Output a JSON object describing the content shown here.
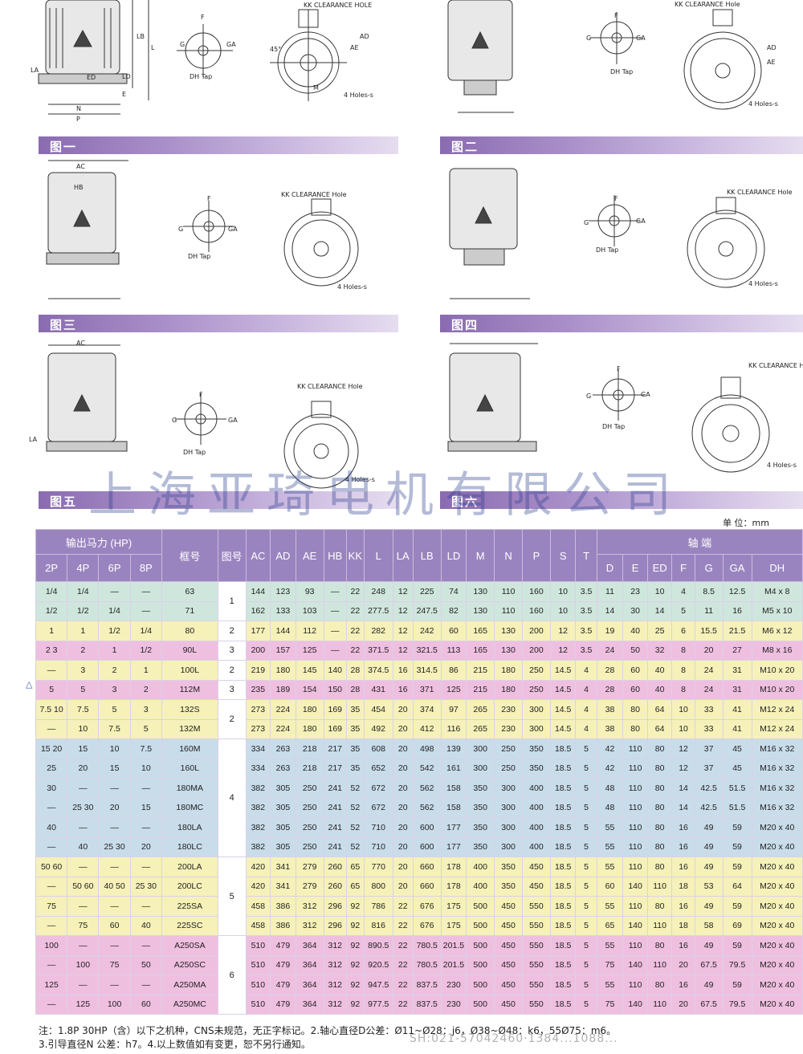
{
  "figures": [
    {
      "label": "图一",
      "texts": [
        "LB",
        "L",
        "LA",
        "ED",
        "LD",
        "E",
        "N",
        "P",
        "F",
        "G",
        "GA",
        "DH Tap",
        "KK CLEARANCE HOLE",
        "AD",
        "AE",
        "45°",
        "4 Holes-s",
        "M"
      ]
    },
    {
      "label": "图二",
      "texts": [
        "F",
        "G",
        "GA",
        "DH Tap",
        "KK CLEARANCE Hole",
        "AD",
        "AE",
        "4 Holes-s"
      ]
    },
    {
      "label": "图三",
      "texts": [
        "AC",
        "HB",
        "F",
        "G",
        "GA",
        "DH Tap",
        "KK CLEARANCE Hole",
        "4 Holes-s"
      ]
    },
    {
      "label": "图四",
      "texts": [
        "F",
        "G",
        "GA",
        "DH Tap",
        "KK CLEARANCE Hole",
        "4 Holes-s"
      ]
    },
    {
      "label": "图五",
      "texts": [
        "AC",
        "LA",
        "F",
        "G",
        "GA",
        "DH Tap",
        "KK CLEARANCE Hole",
        "4 Holes-s"
      ]
    },
    {
      "label": "图六",
      "texts": [
        "F",
        "G",
        "GA",
        "DH Tap",
        "KK CLEARANCE HOLE",
        "4 Holes-s"
      ]
    }
  ],
  "unit_label": "单 位：mm",
  "table": {
    "group_hp": "输出马力 (HP)",
    "group_shaft": "轴    端",
    "hp_cols": [
      "2P",
      "4P",
      "6P",
      "8P"
    ],
    "frame_header": "框号",
    "figure_header": "图号",
    "dim_cols": [
      "AC",
      "AD",
      "AE",
      "HB",
      "KK",
      "L",
      "LA",
      "LB",
      "LD",
      "M",
      "N",
      "P",
      "S",
      "T"
    ],
    "shaft_cols": [
      "D",
      "E",
      "ED",
      "F",
      "G",
      "GA",
      "DH"
    ],
    "rows": [
      {
        "color": "green",
        "hp": [
          "1/4",
          "1/4",
          "—",
          "—"
        ],
        "frame": "63",
        "dims": [
          "144",
          "123",
          "93",
          "—",
          "22",
          "248",
          "12",
          "225",
          "74",
          "130",
          "110",
          "160",
          "10",
          "3.5"
        ],
        "shaft": [
          "11",
          "23",
          "10",
          "4",
          "8.5",
          "12.5",
          "M4 x 8"
        ]
      },
      {
        "color": "green",
        "hp": [
          "1/2",
          "1/2",
          "1/4",
          "—"
        ],
        "frame": "71",
        "dims": [
          "162",
          "133",
          "103",
          "—",
          "22",
          "277.5",
          "12",
          "247.5",
          "82",
          "130",
          "110",
          "160",
          "10",
          "3.5"
        ],
        "shaft": [
          "14",
          "30",
          "14",
          "5",
          "11",
          "16",
          "M5 x 10"
        ]
      },
      {
        "color": "yellow",
        "hp": [
          "1",
          "1",
          "1/2",
          "1/4"
        ],
        "frame": "80",
        "dims": [
          "177",
          "144",
          "112",
          "—",
          "22",
          "282",
          "12",
          "242",
          "60",
          "165",
          "130",
          "200",
          "12",
          "3.5"
        ],
        "shaft": [
          "19",
          "40",
          "25",
          "6",
          "15.5",
          "21.5",
          "M6 x 12"
        ]
      },
      {
        "color": "pink",
        "hp": [
          "2 3",
          "2",
          "1",
          "1/2"
        ],
        "frame": "90L",
        "dims": [
          "200",
          "157",
          "125",
          "—",
          "22",
          "371.5",
          "12",
          "321.5",
          "113",
          "165",
          "130",
          "200",
          "12",
          "3.5"
        ],
        "shaft": [
          "24",
          "50",
          "32",
          "8",
          "20",
          "27",
          "M8 x 16"
        ]
      },
      {
        "color": "yellow",
        "hp": [
          "—",
          "3",
          "2",
          "1"
        ],
        "frame": "100L",
        "dims": [
          "219",
          "180",
          "145",
          "140",
          "28",
          "374.5",
          "16",
          "314.5",
          "86",
          "215",
          "180",
          "250",
          "14.5",
          "4"
        ],
        "shaft": [
          "28",
          "60",
          "40",
          "8",
          "24",
          "31",
          "M10 x 20"
        ]
      },
      {
        "color": "pink",
        "hp": [
          "5",
          "5",
          "3",
          "2"
        ],
        "frame": "112M",
        "dims": [
          "235",
          "189",
          "154",
          "150",
          "28",
          "431",
          "16",
          "371",
          "125",
          "215",
          "180",
          "250",
          "14.5",
          "4"
        ],
        "shaft": [
          "28",
          "60",
          "40",
          "8",
          "24",
          "31",
          "M10 x 20"
        ]
      },
      {
        "color": "yellow",
        "hp": [
          "7.5 10",
          "7.5",
          "5",
          "3"
        ],
        "frame": "132S",
        "dims": [
          "273",
          "224",
          "180",
          "169",
          "35",
          "454",
          "20",
          "374",
          "97",
          "265",
          "230",
          "300",
          "14.5",
          "4"
        ],
        "shaft": [
          "38",
          "80",
          "64",
          "10",
          "33",
          "41",
          "M12 x 24"
        ]
      },
      {
        "color": "yellow",
        "hp": [
          "—",
          "10",
          "7.5",
          "5"
        ],
        "frame": "132M",
        "dims": [
          "273",
          "224",
          "180",
          "169",
          "35",
          "492",
          "20",
          "412",
          "116",
          "265",
          "230",
          "300",
          "14.5",
          "4"
        ],
        "shaft": [
          "38",
          "80",
          "64",
          "10",
          "33",
          "41",
          "M12 x 24"
        ]
      },
      {
        "color": "blue",
        "hp": [
          "15 20",
          "15",
          "10",
          "7.5"
        ],
        "frame": "160M",
        "dims": [
          "334",
          "263",
          "218",
          "217",
          "35",
          "608",
          "20",
          "498",
          "139",
          "300",
          "250",
          "350",
          "18.5",
          "5"
        ],
        "shaft": [
          "42",
          "110",
          "80",
          "12",
          "37",
          "45",
          "M16 x 32"
        ]
      },
      {
        "color": "blue",
        "hp": [
          "25",
          "20",
          "15",
          "10"
        ],
        "frame": "160L",
        "dims": [
          "334",
          "263",
          "218",
          "217",
          "35",
          "652",
          "20",
          "542",
          "161",
          "300",
          "250",
          "350",
          "18.5",
          "5"
        ],
        "shaft": [
          "42",
          "110",
          "80",
          "12",
          "37",
          "45",
          "M16 x 32"
        ]
      },
      {
        "color": "blue",
        "hp": [
          "30",
          "—",
          "—",
          "—"
        ],
        "frame": "180MA",
        "dims": [
          "382",
          "305",
          "250",
          "241",
          "52",
          "672",
          "20",
          "562",
          "158",
          "350",
          "300",
          "400",
          "18.5",
          "5"
        ],
        "shaft": [
          "48",
          "110",
          "80",
          "14",
          "42.5",
          "51.5",
          "M16 x 32"
        ]
      },
      {
        "color": "blue",
        "hp": [
          "—",
          "25 30",
          "20",
          "15"
        ],
        "frame": "180MC",
        "dims": [
          "382",
          "305",
          "250",
          "241",
          "52",
          "672",
          "20",
          "562",
          "158",
          "350",
          "300",
          "400",
          "18.5",
          "5"
        ],
        "shaft": [
          "48",
          "110",
          "80",
          "14",
          "42.5",
          "51.5",
          "M16 x 32"
        ]
      },
      {
        "color": "blue",
        "hp": [
          "40",
          "—",
          "—",
          "—"
        ],
        "frame": "180LA",
        "dims": [
          "382",
          "305",
          "250",
          "241",
          "52",
          "710",
          "20",
          "600",
          "177",
          "350",
          "300",
          "400",
          "18.5",
          "5"
        ],
        "shaft": [
          "55",
          "110",
          "80",
          "16",
          "49",
          "59",
          "M20 x 40"
        ]
      },
      {
        "color": "blue",
        "hp": [
          "—",
          "40",
          "25 30",
          "20"
        ],
        "frame": "180LC",
        "dims": [
          "382",
          "305",
          "250",
          "241",
          "52",
          "710",
          "20",
          "600",
          "177",
          "350",
          "300",
          "400",
          "18.5",
          "5"
        ],
        "shaft": [
          "55",
          "110",
          "80",
          "16",
          "49",
          "59",
          "M20 x 40"
        ]
      },
      {
        "color": "yellow",
        "hp": [
          "50 60",
          "—",
          "—",
          "—"
        ],
        "frame": "200LA",
        "dims": [
          "420",
          "341",
          "279",
          "260",
          "65",
          "770",
          "20",
          "660",
          "178",
          "400",
          "350",
          "450",
          "18.5",
          "5"
        ],
        "shaft": [
          "55",
          "110",
          "80",
          "16",
          "49",
          "59",
          "M20 x 40"
        ]
      },
      {
        "color": "yellow",
        "hp": [
          "—",
          "50 60",
          "40 50",
          "25 30"
        ],
        "frame": "200LC",
        "dims": [
          "420",
          "341",
          "279",
          "260",
          "65",
          "800",
          "20",
          "660",
          "178",
          "400",
          "350",
          "450",
          "18.5",
          "5"
        ],
        "shaft": [
          "60",
          "140",
          "110",
          "18",
          "53",
          "64",
          "M20 x 40"
        ]
      },
      {
        "color": "yellow",
        "hp": [
          "75",
          "—",
          "—",
          "—"
        ],
        "frame": "225SA",
        "dims": [
          "458",
          "386",
          "312",
          "296",
          "92",
          "786",
          "22",
          "676",
          "175",
          "500",
          "450",
          "550",
          "18.5",
          "5"
        ],
        "shaft": [
          "55",
          "110",
          "80",
          "16",
          "49",
          "59",
          "M20 x 40"
        ]
      },
      {
        "color": "yellow",
        "hp": [
          "—",
          "75",
          "60",
          "40"
        ],
        "frame": "225SC",
        "dims": [
          "458",
          "386",
          "312",
          "296",
          "92",
          "816",
          "22",
          "676",
          "175",
          "500",
          "450",
          "550",
          "18.5",
          "5"
        ],
        "shaft": [
          "65",
          "140",
          "110",
          "18",
          "58",
          "69",
          "M20 x 40"
        ]
      },
      {
        "color": "pink",
        "hp": [
          "100",
          "—",
          "—",
          "—"
        ],
        "frame": "A250SA",
        "dims": [
          "510",
          "479",
          "364",
          "312",
          "92",
          "890.5",
          "22",
          "780.5",
          "201.5",
          "500",
          "450",
          "550",
          "18.5",
          "5"
        ],
        "shaft": [
          "55",
          "110",
          "80",
          "16",
          "49",
          "59",
          "M20 x 40"
        ]
      },
      {
        "color": "pink",
        "hp": [
          "—",
          "100",
          "75",
          "50"
        ],
        "frame": "A250SC",
        "dims": [
          "510",
          "479",
          "364",
          "312",
          "92",
          "920.5",
          "22",
          "780.5",
          "201.5",
          "500",
          "450",
          "550",
          "18.5",
          "5"
        ],
        "shaft": [
          "75",
          "140",
          "110",
          "20",
          "67.5",
          "79.5",
          "M20 x 40"
        ]
      },
      {
        "color": "pink",
        "hp": [
          "125",
          "—",
          "—",
          "—"
        ],
        "frame": "A250MA",
        "dims": [
          "510",
          "479",
          "364",
          "312",
          "92",
          "947.5",
          "22",
          "837.5",
          "230",
          "500",
          "450",
          "550",
          "18.5",
          "5"
        ],
        "shaft": [
          "55",
          "110",
          "80",
          "16",
          "49",
          "59",
          "M20 x 40"
        ]
      },
      {
        "color": "pink",
        "hp": [
          "—",
          "125",
          "100",
          "60"
        ],
        "frame": "A250MC",
        "dims": [
          "510",
          "479",
          "364",
          "312",
          "92",
          "977.5",
          "22",
          "837.5",
          "230",
          "500",
          "450",
          "550",
          "18.5",
          "5"
        ],
        "shaft": [
          "75",
          "140",
          "110",
          "20",
          "67.5",
          "79.5",
          "M20 x 40"
        ]
      }
    ],
    "figure_groups": [
      {
        "label": "1",
        "rowspan": 2
      },
      {
        "label": "2",
        "rowspan": 1
      },
      {
        "label": "3",
        "rowspan": 1
      },
      {
        "label": "2",
        "rowspan": 1
      },
      {
        "label": "3",
        "rowspan": 1
      },
      {
        "label": "2",
        "rowspan": 2
      },
      {
        "label": "4",
        "rowspan": 6
      },
      {
        "label": "5",
        "rowspan": 4
      },
      {
        "label": "6",
        "rowspan": 4
      }
    ]
  },
  "notes": [
    "注：1.8P 30HP（含）以下之机种，CNS未规范，无正字标记。2.轴心直径D公差：Ø11~Ø28：j6，Ø38~Ø48：k6，55Ø75：m6。",
    "3.引导直径N  公差：h7。4.以上数值如有变更，恕不另行通知。"
  ],
  "watermark": "上海亚琦电机有限公司",
  "contact": "SH:021-57042460·1384...1088...",
  "colors": {
    "header": "#9a84bf",
    "green": "#cfe6dd",
    "yellow": "#f6f1b8",
    "pink": "#efbfe0",
    "blue": "#c9dcea",
    "bar": "#8a6bb0"
  }
}
